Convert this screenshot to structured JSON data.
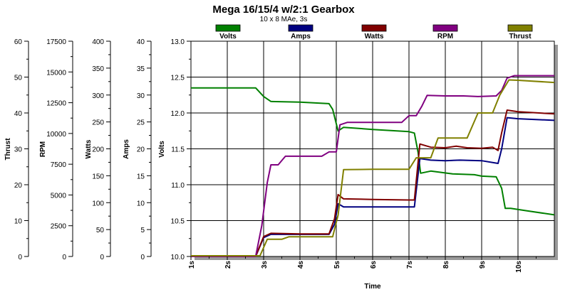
{
  "chart_data": {
    "type": "line",
    "title": "Mega 16/15/4 w/2:1 Gearbox",
    "subtitle": "10 x 8 MAe, 3s",
    "xlabel": "Time",
    "x_ticks": [
      "1s",
      "2s",
      "3s",
      "4s",
      "5s",
      "6s",
      "7s",
      "8s",
      "9s",
      "10s"
    ],
    "xlim": [
      1,
      11
    ],
    "grid": true,
    "legend": "top",
    "axes": [
      {
        "label": "Thrust",
        "range": [
          0,
          60
        ],
        "ticks": [
          "0",
          "10",
          "20",
          "30",
          "40",
          "50",
          "60"
        ]
      },
      {
        "label": "RPM",
        "range": [
          0,
          17500
        ],
        "ticks": [
          "0",
          "2500",
          "5000",
          "7500",
          "10000",
          "12500",
          "15000",
          "17500"
        ]
      },
      {
        "label": "Watts",
        "range": [
          0,
          400
        ],
        "ticks": [
          "0",
          "50",
          "100",
          "150",
          "200",
          "250",
          "300",
          "350",
          "400"
        ]
      },
      {
        "label": "Amps",
        "range": [
          0,
          40
        ],
        "ticks": [
          "0",
          "5",
          "10",
          "15",
          "20",
          "25",
          "30",
          "35",
          "40"
        ]
      },
      {
        "label": "Volts",
        "range": [
          10.0,
          13.0
        ],
        "ticks": [
          "10.0",
          "10.5",
          "11.0",
          "11.5",
          "12.0",
          "12.5",
          "13.0"
        ]
      }
    ],
    "series": [
      {
        "name": "Volts",
        "color": "#008000",
        "axis": "Volts",
        "points": [
          [
            1,
            12.35
          ],
          [
            2,
            12.35
          ],
          [
            2.78,
            12.35
          ],
          [
            3,
            12.23
          ],
          [
            3.2,
            12.16
          ],
          [
            4,
            12.15
          ],
          [
            4.8,
            12.13
          ],
          [
            4.9,
            12.05
          ],
          [
            5.05,
            11.75
          ],
          [
            5.2,
            11.8
          ],
          [
            6,
            11.77
          ],
          [
            7,
            11.74
          ],
          [
            7.15,
            11.72
          ],
          [
            7.25,
            11.45
          ],
          [
            7.32,
            11.16
          ],
          [
            7.6,
            11.19
          ],
          [
            7.9,
            11.17
          ],
          [
            8.2,
            11.15
          ],
          [
            8.8,
            11.14
          ],
          [
            9,
            11.12
          ],
          [
            9.4,
            11.11
          ],
          [
            9.55,
            10.95
          ],
          [
            9.65,
            10.67
          ],
          [
            9.8,
            10.67
          ],
          [
            10.2,
            10.64
          ],
          [
            11,
            10.58
          ]
        ]
      },
      {
        "name": "Amps",
        "color": "#000080",
        "axis": "Amps",
        "points": [
          [
            1,
            0
          ],
          [
            2.78,
            0
          ],
          [
            3,
            3.5
          ],
          [
            3.2,
            4.1
          ],
          [
            4,
            4.1
          ],
          [
            4.8,
            4.1
          ],
          [
            4.95,
            6
          ],
          [
            5.05,
            9.8
          ],
          [
            5.2,
            9.2
          ],
          [
            6,
            9.2
          ],
          [
            7,
            9.2
          ],
          [
            7.15,
            9.2
          ],
          [
            7.3,
            18.2
          ],
          [
            7.6,
            17.9
          ],
          [
            8,
            17.8
          ],
          [
            8.4,
            17.9
          ],
          [
            9,
            17.8
          ],
          [
            9.45,
            17.3
          ],
          [
            9.55,
            20
          ],
          [
            9.7,
            25.8
          ],
          [
            10,
            25.6
          ],
          [
            11,
            25.3
          ]
        ]
      },
      {
        "name": "Watts",
        "color": "#800000",
        "axis": "Watts",
        "points": [
          [
            1,
            0
          ],
          [
            2.78,
            0
          ],
          [
            3,
            37
          ],
          [
            3.2,
            43
          ],
          [
            4,
            42
          ],
          [
            4.8,
            42
          ],
          [
            4.95,
            70
          ],
          [
            5.05,
            115
          ],
          [
            5.2,
            107
          ],
          [
            6,
            106
          ],
          [
            7,
            105
          ],
          [
            7.15,
            105
          ],
          [
            7.3,
            209
          ],
          [
            7.6,
            203
          ],
          [
            8,
            202
          ],
          [
            8.3,
            205
          ],
          [
            8.6,
            202
          ],
          [
            9,
            201
          ],
          [
            9.3,
            203
          ],
          [
            9.45,
            197
          ],
          [
            9.55,
            230
          ],
          [
            9.7,
            272
          ],
          [
            10,
            269
          ],
          [
            11,
            265
          ]
        ]
      },
      {
        "name": "RPM",
        "color": "#800080",
        "axis": "RPM",
        "points": [
          [
            1,
            0
          ],
          [
            2.78,
            0
          ],
          [
            2.95,
            2500
          ],
          [
            3.1,
            6000
          ],
          [
            3.2,
            7450
          ],
          [
            3.4,
            7450
          ],
          [
            3.6,
            8150
          ],
          [
            4,
            8150
          ],
          [
            4.6,
            8150
          ],
          [
            4.8,
            8500
          ],
          [
            5,
            8500
          ],
          [
            5.1,
            10700
          ],
          [
            5.3,
            10900
          ],
          [
            6,
            10900
          ],
          [
            6.8,
            10900
          ],
          [
            7,
            11450
          ],
          [
            7.2,
            11450
          ],
          [
            7.35,
            12200
          ],
          [
            7.5,
            13100
          ],
          [
            8,
            13050
          ],
          [
            8.5,
            13050
          ],
          [
            8.9,
            13000
          ],
          [
            9.4,
            13050
          ],
          [
            9.55,
            13500
          ],
          [
            9.7,
            14500
          ],
          [
            9.9,
            14700
          ],
          [
            11,
            14700
          ]
        ]
      },
      {
        "name": "Thrust",
        "color": "#808000",
        "axis": "Thrust",
        "points": [
          [
            1,
            0.2
          ],
          [
            2.78,
            0.2
          ],
          [
            2.9,
            0.2
          ],
          [
            3.1,
            4.8
          ],
          [
            3.5,
            4.8
          ],
          [
            3.7,
            5.5
          ],
          [
            4,
            5.5
          ],
          [
            4.9,
            5.5
          ],
          [
            5.05,
            11.5
          ],
          [
            5.2,
            24.2
          ],
          [
            6,
            24.3
          ],
          [
            7,
            24.3
          ],
          [
            7.2,
            27.5
          ],
          [
            7.6,
            27.5
          ],
          [
            7.8,
            33
          ],
          [
            8,
            33
          ],
          [
            8.6,
            33
          ],
          [
            8.9,
            40
          ],
          [
            9.3,
            40
          ],
          [
            9.5,
            45
          ],
          [
            9.75,
            49.2
          ],
          [
            10,
            49.1
          ],
          [
            11,
            48.5
          ]
        ]
      }
    ]
  }
}
